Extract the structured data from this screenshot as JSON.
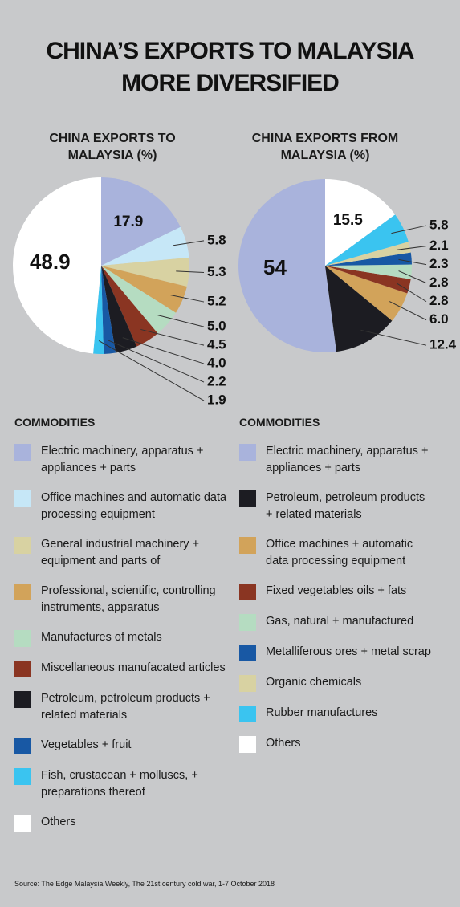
{
  "title": "CHINA’S EXPORTS TO MALAYSIA MORE DIVERSIFIED",
  "source": "Source: The Edge Malaysia Weekly, The 21st century cold war, 1-7 October 2018",
  "chart_data": [
    {
      "type": "pie",
      "title": "CHINA EXPORTS TO MALAYSIA (%)",
      "legend_title": "COMMODITIES",
      "direction": "clockwise",
      "categories": [
        "Electric machinery, apparatus + appliances + parts",
        "Office machines and automatic data processing equipment",
        "General industrial machinery + equipment and parts of",
        "Professional, scientific, controlling instruments, apparatus",
        "Manufactures of metals",
        "Miscellaneous manufacated articles",
        "Petroleum, petroleum products + related materials",
        "Vegetables + fruit",
        "Fish, crustacean + molluscs, + preparations thereof",
        "Others"
      ],
      "values": [
        17.9,
        5.8,
        5.3,
        5.2,
        5.0,
        4.5,
        4.0,
        2.2,
        1.9,
        48.9
      ],
      "value_labels": [
        "17.9",
        "5.8",
        "5.3",
        "5.2",
        "5.0",
        "4.5",
        "4.0",
        "2.2",
        "1.9",
        "48.9"
      ],
      "colors": [
        "#a9b3dc",
        "#c6e7f7",
        "#d8d2a2",
        "#d2a35a",
        "#b5dcc1",
        "#8a3522",
        "#1c1c22",
        "#1858a4",
        "#3ac4f0",
        "#ffffff"
      ]
    },
    {
      "type": "pie",
      "title": "CHINA EXPORTS FROM MALAYSIA (%)",
      "legend_title": "COMMODITIES",
      "direction": "counterclockwise",
      "categories": [
        "Electric machinery, apparatus + appliances + parts",
        "Petroleum, petroleum products + related materials",
        "Office machines + automatic data processing equipment",
        "Fixed vegetables oils + fats",
        "Gas, natural + manufactured",
        "Metalliferous ores + metal scrap",
        "Organic chemicals",
        "Rubber manufactures",
        "Others"
      ],
      "values": [
        54,
        12.4,
        6.0,
        2.8,
        2.8,
        2.3,
        2.1,
        5.8,
        15.5
      ],
      "value_labels": [
        "54",
        "12.4",
        "6.0",
        "2.8",
        "2.8",
        "2.3",
        "2.1",
        "5.8",
        "15.5"
      ],
      "colors": [
        "#a9b3dc",
        "#1c1c22",
        "#d2a35a",
        "#8a3522",
        "#b5dcc1",
        "#1858a4",
        "#d8d2a2",
        "#3ac4f0",
        "#ffffff"
      ]
    }
  ]
}
